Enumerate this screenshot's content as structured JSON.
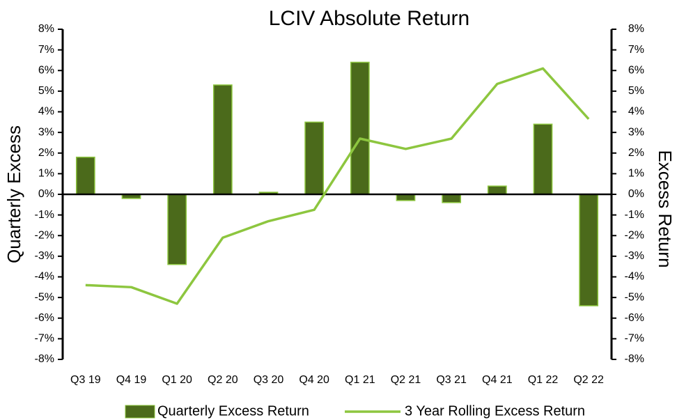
{
  "chart_data": {
    "type": "bar_line",
    "title": "LCIV Absolute Return",
    "y_label": "Quarterly Excess",
    "y2_label": "Excess Return",
    "categories": [
      "Q3 19",
      "Q4 19",
      "Q1 20",
      "Q2 20",
      "Q3 20",
      "Q4 20",
      "Q1 21",
      "Q2 21",
      "Q3 21",
      "Q4 21",
      "Q1 22",
      "Q2 22"
    ],
    "series": [
      {
        "name": "Quarterly Excess Return",
        "type": "bar",
        "color": "#4b6a1b",
        "edge_color": "#8dc63f",
        "values": [
          1.8,
          -0.2,
          -3.4,
          5.3,
          0.1,
          3.5,
          6.4,
          -0.3,
          -0.4,
          0.4,
          3.4,
          -5.4
        ]
      },
      {
        "name": "3 Year Rolling Excess Return",
        "type": "line",
        "axis": "y2",
        "color": "#8dc63f",
        "values": [
          -4.4,
          -4.5,
          -5.3,
          -2.1,
          -1.3,
          -0.75,
          2.7,
          2.2,
          2.7,
          5.35,
          6.1,
          3.65
        ]
      }
    ],
    "ylim": [
      -8,
      8
    ],
    "yticks": [
      {
        "value": 8,
        "label": "8%"
      },
      {
        "value": 7,
        "label": "7%"
      },
      {
        "value": 6,
        "label": "6%"
      },
      {
        "value": 5,
        "label": "5%"
      },
      {
        "value": 4,
        "label": "4%"
      },
      {
        "value": 3,
        "label": "3%"
      },
      {
        "value": 2,
        "label": "2%"
      },
      {
        "value": 1,
        "label": "1%"
      },
      {
        "value": 0,
        "label": "0%"
      },
      {
        "value": -1,
        "label": "-1%"
      },
      {
        "value": -2,
        "label": "-2%"
      },
      {
        "value": -3,
        "label": "-3%"
      },
      {
        "value": -4,
        "label": "-4%"
      },
      {
        "value": -5,
        "label": "-5%"
      },
      {
        "value": -6,
        "label": "-6%"
      },
      {
        "value": -7,
        "label": "-7%"
      },
      {
        "value": -8,
        "label": "-8%"
      }
    ],
    "y2lim": [
      -8,
      8
    ],
    "y2ticks": [
      {
        "value": 8,
        "label": "8%"
      },
      {
        "value": 7,
        "label": "7%"
      },
      {
        "value": 6,
        "label": "6%"
      },
      {
        "value": 5,
        "label": "5%"
      },
      {
        "value": 4,
        "label": "4%"
      },
      {
        "value": 3,
        "label": "3%"
      },
      {
        "value": 2,
        "label": "2%"
      },
      {
        "value": 1,
        "label": "1%"
      },
      {
        "value": 0,
        "label": "0%"
      },
      {
        "value": -1,
        "label": "-1%"
      },
      {
        "value": -2,
        "label": "-2%"
      },
      {
        "value": -3,
        "label": "-3%"
      },
      {
        "value": -4,
        "label": "-4%"
      },
      {
        "value": -5,
        "label": "-5%"
      },
      {
        "value": -6,
        "label": "-6%"
      },
      {
        "value": -7,
        "label": "-7%"
      },
      {
        "value": -8,
        "label": "-8%"
      }
    ],
    "legend": "bottom"
  }
}
